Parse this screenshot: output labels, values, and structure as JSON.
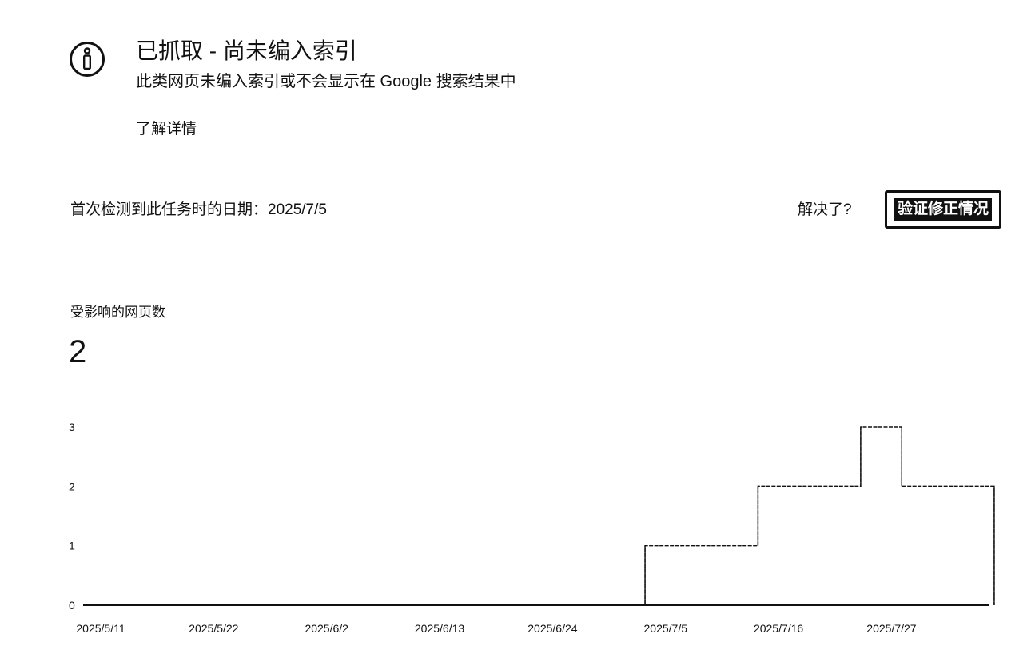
{
  "issue": {
    "icon": "info-circle-icon",
    "title": "已抓取 - 尚未编入索引",
    "subtitle": "此类网页未编入索引或不会显示在 Google 搜索结果中",
    "learn_more": "了解详情"
  },
  "detection": {
    "first_detected": "首次检测到此任务时的日期：2025/7/5",
    "resolved_label": "解决了?",
    "validate_button": "验证修正情况"
  },
  "metric": {
    "label": "受影响的网页数",
    "value": "2"
  },
  "chart_data": {
    "type": "line",
    "title": "",
    "xlabel": "",
    "ylabel": "",
    "ylim": [
      0,
      3
    ],
    "y_ticks": [
      "0",
      "1",
      "2",
      "3"
    ],
    "x_tick_labels": [
      "2025/5/11",
      "2025/5/22",
      "2025/6/2",
      "2025/6/13",
      "2025/6/24",
      "2025/7/5",
      "2025/7/16",
      "2025/7/27"
    ],
    "x_start": "2025/5/11",
    "x_end": "2025/8/6",
    "series": [
      {
        "name": "",
        "points": [
          {
            "x": "2025/5/11",
            "y": 0
          },
          {
            "x": "2025/7/3",
            "y": 1
          },
          {
            "x": "2025/7/14",
            "y": 2
          },
          {
            "x": "2025/7/24",
            "y": 3
          },
          {
            "x": "2025/7/28",
            "y": 2
          },
          {
            "x": "2025/8/6",
            "y": 0
          }
        ]
      }
    ]
  }
}
